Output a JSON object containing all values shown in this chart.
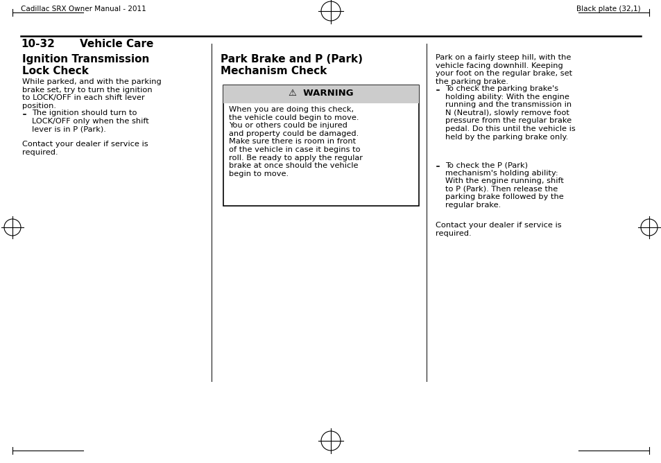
{
  "page_width": 9.54,
  "page_height": 6.68,
  "bg_color": "#ffffff",
  "header_left": "Cadillac SRX Owner Manual - 2011",
  "header_right": "Black plate (32,1)",
  "section_label": "10-32",
  "section_title": "Vehicle Care",
  "col1_heading": "Ignition Transmission\nLock Check",
  "col1_para1": "While parked, and with the parking\nbrake set, try to turn the ignition\nto LOCK/OFF in each shift lever\nposition.",
  "col1_bullet1": "The ignition should turn to\nLOCK/OFF only when the shift\nlever is in P (Park).",
  "col1_para2": "Contact your dealer if service is\nrequired.",
  "col2_heading": "Park Brake and P (Park)\nMechanism Check",
  "warning_header": "⚠  WARNING",
  "warning_text": "When you are doing this check,\nthe vehicle could begin to move.\nYou or others could be injured\nand property could be damaged.\nMake sure there is room in front\nof the vehicle in case it begins to\nroll. Be ready to apply the regular\nbrake at once should the vehicle\nbegin to move.",
  "col3_para1": "Park on a fairly steep hill, with the\nvehicle facing downhill. Keeping\nyour foot on the regular brake, set\nthe parking brake.",
  "col3_bullet1": "To check the parking brake's\nholding ability: With the engine\nrunning and the transmission in\nN (Neutral), slowly remove foot\npressure from the regular brake\npedal. Do this until the vehicle is\nheld by the parking brake only.",
  "col3_bullet2": "To check the P (Park)\nmechanism's holding ability:\nWith the engine running, shift\nto P (Park). Then release the\nparking brake followed by the\nregular brake.",
  "col3_para2": "Contact your dealer if service is\nrequired.",
  "warning_bg": "#cccccc",
  "warning_border": "#000000",
  "text_color": "#000000",
  "divider_color": "#000000"
}
